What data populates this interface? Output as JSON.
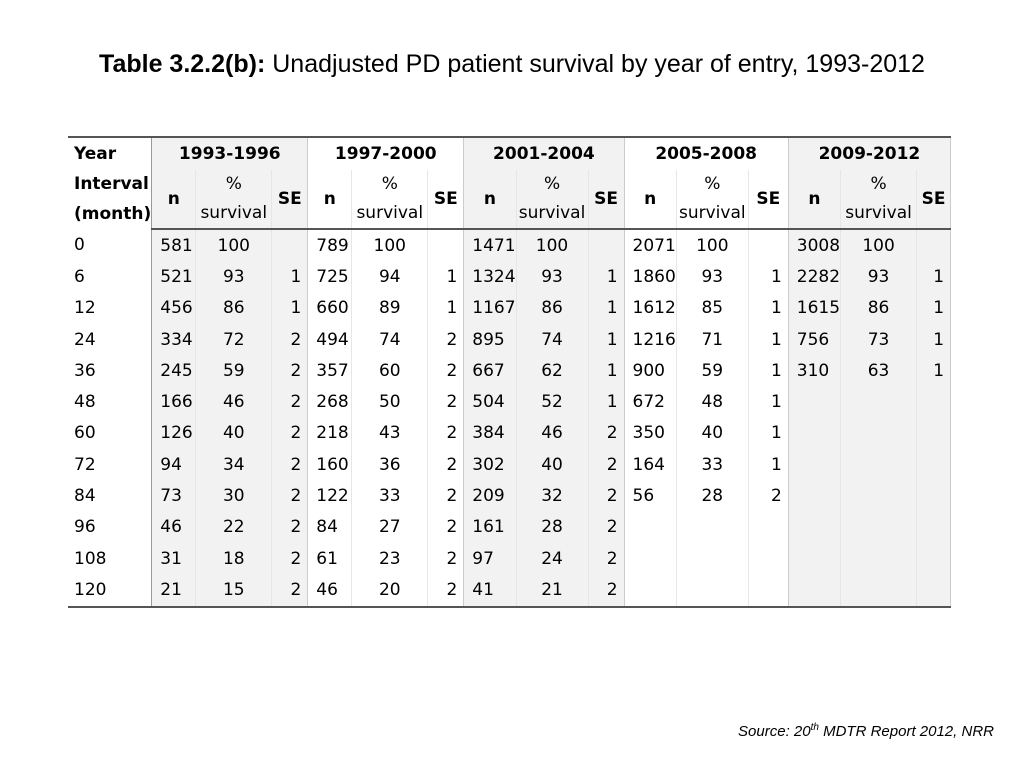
{
  "title": {
    "bold": "Table 3.2.2(b):",
    "regular": "Unadjusted PD patient survival by year of entry, 1993-2012"
  },
  "table": {
    "year_header": [
      "Year",
      "Interval",
      "(month)"
    ],
    "groups": [
      "1993-1996",
      "1997-2000",
      "2001-2004",
      "2005-2008",
      "2009-2012"
    ],
    "sub_headers": {
      "n": "n",
      "pct_line1": "%",
      "pct_line2": "survival",
      "se": "SE"
    },
    "rows": [
      {
        "interval": "0",
        "cells": [
          [
            "581",
            "100",
            ""
          ],
          [
            "789",
            "100",
            ""
          ],
          [
            "1471",
            "100",
            ""
          ],
          [
            "2071",
            "100",
            ""
          ],
          [
            "3008",
            "100",
            ""
          ]
        ]
      },
      {
        "interval": "6",
        "cells": [
          [
            "521",
            "93",
            "1"
          ],
          [
            "725",
            "94",
            "1"
          ],
          [
            "1324",
            "93",
            "1"
          ],
          [
            "1860",
            "93",
            "1"
          ],
          [
            "2282",
            "93",
            "1"
          ]
        ]
      },
      {
        "interval": "12",
        "cells": [
          [
            "456",
            "86",
            "1"
          ],
          [
            "660",
            "89",
            "1"
          ],
          [
            "1167",
            "86",
            "1"
          ],
          [
            "1612",
            "85",
            "1"
          ],
          [
            "1615",
            "86",
            "1"
          ]
        ]
      },
      {
        "interval": "24",
        "cells": [
          [
            "334",
            "72",
            "2"
          ],
          [
            "494",
            "74",
            "2"
          ],
          [
            "895",
            "74",
            "1"
          ],
          [
            "1216",
            "71",
            "1"
          ],
          [
            "756",
            "73",
            "1"
          ]
        ]
      },
      {
        "interval": "36",
        "cells": [
          [
            "245",
            "59",
            "2"
          ],
          [
            "357",
            "60",
            "2"
          ],
          [
            "667",
            "62",
            "1"
          ],
          [
            "900",
            "59",
            "1"
          ],
          [
            "310",
            "63",
            "1"
          ]
        ]
      },
      {
        "interval": "48",
        "cells": [
          [
            "166",
            "46",
            "2"
          ],
          [
            "268",
            "50",
            "2"
          ],
          [
            "504",
            "52",
            "1"
          ],
          [
            "672",
            "48",
            "1"
          ],
          [
            "",
            "",
            ""
          ]
        ]
      },
      {
        "interval": "60",
        "cells": [
          [
            "126",
            "40",
            "2"
          ],
          [
            "218",
            "43",
            "2"
          ],
          [
            "384",
            "46",
            "2"
          ],
          [
            "350",
            "40",
            "1"
          ],
          [
            "",
            "",
            ""
          ]
        ]
      },
      {
        "interval": "72",
        "cells": [
          [
            "94",
            "34",
            "2"
          ],
          [
            "160",
            "36",
            "2"
          ],
          [
            "302",
            "40",
            "2"
          ],
          [
            "164",
            "33",
            "1"
          ],
          [
            "",
            "",
            ""
          ]
        ]
      },
      {
        "interval": "84",
        "cells": [
          [
            "73",
            "30",
            "2"
          ],
          [
            "122",
            "33",
            "2"
          ],
          [
            "209",
            "32",
            "2"
          ],
          [
            "56",
            "28",
            "2"
          ],
          [
            "",
            "",
            ""
          ]
        ]
      },
      {
        "interval": "96",
        "cells": [
          [
            "46",
            "22",
            "2"
          ],
          [
            "84",
            "27",
            "2"
          ],
          [
            "161",
            "28",
            "2"
          ],
          [
            "",
            "",
            ""
          ],
          [
            "",
            "",
            ""
          ]
        ]
      },
      {
        "interval": "108",
        "cells": [
          [
            "31",
            "18",
            "2"
          ],
          [
            "61",
            "23",
            "2"
          ],
          [
            "97",
            "24",
            "2"
          ],
          [
            "",
            "",
            ""
          ],
          [
            "",
            "",
            ""
          ]
        ]
      },
      {
        "interval": "120",
        "cells": [
          [
            "21",
            "15",
            "2"
          ],
          [
            "46",
            "20",
            "2"
          ],
          [
            "41",
            "21",
            "2"
          ],
          [
            "",
            "",
            ""
          ],
          [
            "",
            "",
            ""
          ]
        ]
      }
    ]
  },
  "source": {
    "prefix": "Source: 20",
    "superscript": "th",
    "suffix": " MDTR Report 2012, NRR"
  }
}
